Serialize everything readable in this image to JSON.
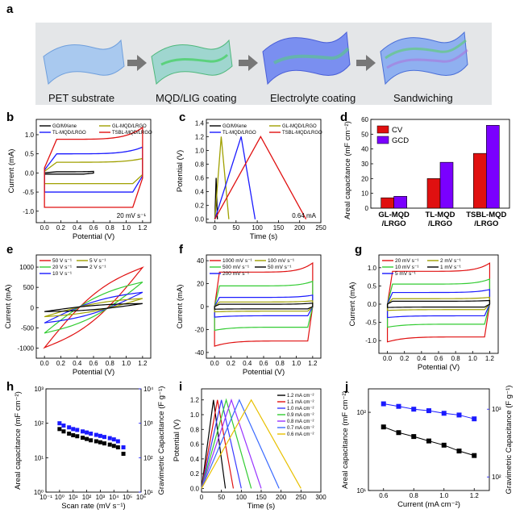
{
  "panel_a": {
    "label": "a",
    "steps": [
      "PET substrate",
      "MQD/LIG coating",
      "Electrolyte coating",
      "Sandwiching"
    ]
  },
  "colors": {
    "black": "#000000",
    "blue": "#1a1aff",
    "olive": "#a0a000",
    "red": "#e01010",
    "green": "#33cc33",
    "purple": "#9933ff",
    "violet": "#7a00ff",
    "yellow": "#e8c000",
    "gravi": "#1a1aff"
  },
  "chart_data": [
    {
      "id": "b",
      "type": "line",
      "label": "b",
      "xlabel": "Potential (V)",
      "ylabel": "Current (mA)",
      "xlim": [
        -0.1,
        1.3
      ],
      "ylim": [
        -1.3,
        1.4
      ],
      "xticks": [
        "0.0",
        "0.2",
        "0.4",
        "0.6",
        "0.8",
        "1.0",
        "1.2"
      ],
      "yticks": [
        "-1.0",
        "-0.5",
        "0.0",
        "0.5",
        "1.0"
      ],
      "annotation": "20 mV s⁻¹",
      "series": [
        {
          "name": "GO/MXene",
          "color": "black",
          "upper": 0.03,
          "lower": -0.03,
          "xmax": 0.6
        },
        {
          "name": "GL-MQD/LRGO",
          "color": "olive",
          "upper": 0.28,
          "lower": -0.28,
          "xmax": 1.2
        },
        {
          "name": "TL-MQD/LRGO",
          "color": "blue",
          "upper": 0.5,
          "lower": -0.5,
          "xmax": 1.2
        },
        {
          "name": "TSBL-MQD/LRGO",
          "color": "red",
          "upper": 0.88,
          "lower": -0.9,
          "xmax": 1.2
        }
      ]
    },
    {
      "id": "c",
      "type": "line",
      "label": "c",
      "xlabel": "Time (s)",
      "ylabel": "Potential (V)",
      "xlim": [
        -20,
        250
      ],
      "ylim": [
        -0.05,
        1.45
      ],
      "xticks": [
        "0",
        "50",
        "100",
        "150",
        "200",
        "250"
      ],
      "yticks": [
        "0.0",
        "0.2",
        "0.4",
        "0.6",
        "0.8",
        "1.0",
        "1.2",
        "1.4"
      ],
      "annotation": "0.64 mA",
      "series": [
        {
          "name": "GO/MXene",
          "color": "black",
          "t_peak": 3,
          "t_end": 6,
          "v_peak": 0.6
        },
        {
          "name": "GL-MQD/LRGO",
          "color": "olive",
          "t_peak": 15,
          "t_end": 33,
          "v_peak": 1.2
        },
        {
          "name": "TL-MQD/LRGO",
          "color": "blue",
          "t_peak": 62,
          "t_end": 95,
          "v_peak": 1.2
        },
        {
          "name": "TSBL-MQD/LRGO",
          "color": "red",
          "t_peak": 108,
          "t_end": 215,
          "v_peak": 1.2
        }
      ]
    },
    {
      "id": "d",
      "type": "bar",
      "label": "d",
      "ylabel": "Areal capacitance (mF cm⁻²)",
      "ylim": [
        0,
        60
      ],
      "yticks": [
        "0",
        "10",
        "20",
        "30",
        "40",
        "50",
        "60"
      ],
      "categories": [
        [
          "GL-MQD",
          "/LRGO"
        ],
        [
          "TL-MQD",
          "/LRGO"
        ],
        [
          "TSBL-MQD",
          "/LRGO"
        ]
      ],
      "series": [
        {
          "name": "CV",
          "color": "red",
          "values": [
            7,
            20,
            37
          ]
        },
        {
          "name": "GCD",
          "color": "violet",
          "values": [
            8,
            31,
            56
          ]
        }
      ]
    },
    {
      "id": "e",
      "type": "line",
      "label": "e",
      "xlabel": "Potential (V)",
      "ylabel": "Current (mA)",
      "xlim": [
        -0.1,
        1.3
      ],
      "ylim": [
        -1250,
        1300
      ],
      "xticks": [
        "0.0",
        "0.2",
        "0.4",
        "0.6",
        "0.8",
        "1.0",
        "1.2"
      ],
      "yticks": [
        "-1000",
        "-500",
        "0",
        "500",
        "1000"
      ],
      "series": [
        {
          "name": "50 V s⁻¹",
          "color": "red",
          "amp": 1100,
          "width": 320
        },
        {
          "name": "20 V s⁻¹",
          "color": "green",
          "amp": 700,
          "width": 220
        },
        {
          "name": "10 V s⁻¹",
          "color": "blue",
          "amp": 420,
          "width": 140
        },
        {
          "name": "5 V s⁻¹",
          "color": "olive",
          "amp": 250,
          "width": 90
        },
        {
          "name": "2 V s⁻¹",
          "color": "black",
          "amp": 110,
          "width": 50
        }
      ]
    },
    {
      "id": "f",
      "type": "line",
      "label": "f",
      "xlabel": "Potential (V)",
      "ylabel": "Current (mA)",
      "xlim": [
        -0.1,
        1.3
      ],
      "ylim": [
        -45,
        45
      ],
      "xticks": [
        "0.0",
        "0.2",
        "0.4",
        "0.6",
        "0.8",
        "1.0",
        "1.2"
      ],
      "yticks": [
        "-40",
        "-20",
        "0",
        "20",
        "40"
      ],
      "series": [
        {
          "name": "1000 mV s⁻¹",
          "color": "red",
          "upper": 30,
          "lower": -30,
          "hi_end": 38
        },
        {
          "name": "500 mV s⁻¹",
          "color": "green",
          "upper": 18,
          "lower": -18,
          "hi_end": 22
        },
        {
          "name": "200 mV s⁻¹",
          "color": "blue",
          "upper": 8,
          "lower": -8,
          "hi_end": 10
        },
        {
          "name": "100 mV s⁻¹",
          "color": "olive",
          "upper": 4,
          "lower": -4,
          "hi_end": 5
        },
        {
          "name": "50 mV s⁻¹",
          "color": "black",
          "upper": 2,
          "lower": -2,
          "hi_end": 3
        }
      ]
    },
    {
      "id": "g",
      "type": "line",
      "label": "g",
      "xlabel": "Potential (V)",
      "ylabel": "Current (mA)",
      "xlim": [
        -0.1,
        1.3
      ],
      "ylim": [
        -1.35,
        1.35
      ],
      "xticks": [
        "0.0",
        "0.2",
        "0.4",
        "0.6",
        "0.8",
        "1.0",
        "1.2"
      ],
      "yticks": [
        "-1.0",
        "-0.5",
        "0.0",
        "0.5",
        "1.0"
      ],
      "series": [
        {
          "name": "20 mV s⁻¹",
          "color": "red",
          "upper": 0.9,
          "lower": -0.9
        },
        {
          "name": "10 mV s⁻¹",
          "color": "green",
          "upper": 0.55,
          "lower": -0.55
        },
        {
          "name": "5 mV s⁻¹",
          "color": "blue",
          "upper": 0.32,
          "lower": -0.32
        },
        {
          "name": "2 mV s⁻¹",
          "color": "olive",
          "upper": 0.15,
          "lower": -0.15
        },
        {
          "name": "1 mV s⁻¹",
          "color": "black",
          "upper": 0.08,
          "lower": -0.08
        }
      ]
    },
    {
      "id": "h",
      "type": "scatter",
      "label": "h",
      "xlabel": "Scan rate (mV s⁻¹)",
      "ylabel": "Areal capacitance (mF cm⁻²)",
      "ylabel2": "Gravimetric Capacitance (F g⁻¹)",
      "xlim_log": [
        -1,
        6
      ],
      "ylim_log": [
        0,
        3
      ],
      "y2lim_log": [
        1,
        4
      ],
      "xticks": [
        "10⁻¹",
        "10⁰",
        "10¹",
        "10²",
        "10³",
        "10⁴",
        "10⁵",
        "10⁶"
      ],
      "yticks": [
        "10⁰",
        "10¹",
        "10²",
        "10³"
      ],
      "y2ticks": [
        "10¹",
        "10²",
        "10³",
        "10⁴"
      ],
      "x": [
        1,
        2,
        5,
        10,
        20,
        50,
        100,
        200,
        500,
        1000,
        2000,
        5000,
        10000,
        20000,
        50000
      ],
      "areal": [
        68,
        58,
        50,
        45,
        42,
        38,
        35,
        32,
        30,
        28,
        26,
        24,
        22,
        20,
        13
      ],
      "gravimetric": [
        1000,
        860,
        760,
        680,
        640,
        580,
        540,
        500,
        460,
        430,
        400,
        370,
        340,
        300,
        200
      ]
    },
    {
      "id": "i",
      "type": "line",
      "label": "i",
      "xlabel": "Time (s)",
      "ylabel": "Potential (V)",
      "xlim": [
        0,
        300
      ],
      "ylim": [
        -0.05,
        1.35
      ],
      "xticks": [
        "0",
        "50",
        "100",
        "150",
        "200",
        "250",
        "300"
      ],
      "yticks": [
        "0.0",
        "0.2",
        "0.4",
        "0.6",
        "0.8",
        "1.0",
        "1.2"
      ],
      "series": [
        {
          "name": "1.2 mA cm⁻²",
          "color": "black",
          "t_peak": 30,
          "t_end": 60
        },
        {
          "name": "1.1 mA cm⁻²",
          "color": "red",
          "t_peak": 40,
          "t_end": 80
        },
        {
          "name": "1.0 mA cm⁻²",
          "color": "#3a3aff",
          "t_peak": 50,
          "t_end": 100
        },
        {
          "name": "0.9 mA cm⁻²",
          "color": "green",
          "t_peak": 62,
          "t_end": 125
        },
        {
          "name": "0.8 mA cm⁻²",
          "color": "purple",
          "t_peak": 75,
          "t_end": 150
        },
        {
          "name": "0.7 mA cm⁻²",
          "color": "#3a6aff",
          "t_peak": 95,
          "t_end": 195
        },
        {
          "name": "0.6 mA cm⁻²",
          "color": "yellow",
          "t_peak": 125,
          "t_end": 250
        }
      ]
    },
    {
      "id": "j",
      "type": "scatter",
      "label": "j",
      "xlabel": "Current (mA cm⁻²)",
      "ylabel": "Areal capacitance (mF cm⁻²)",
      "ylabel2": "Gravimetric Capacitance (F g⁻¹)",
      "xlim": [
        0.5,
        1.3
      ],
      "xticks": [
        "0.6",
        "0.8",
        "1.0",
        "1.2"
      ],
      "ylim_log": [
        1,
        2.3
      ],
      "y2lim_log": [
        1.8,
        3.3
      ],
      "yticks": [
        "10¹",
        "10²"
      ],
      "y2ticks": [
        "10²",
        "10³"
      ],
      "x": [
        0.6,
        0.7,
        0.8,
        0.9,
        1.0,
        1.1,
        1.2
      ],
      "areal": [
        65,
        55,
        49,
        43,
        38,
        32,
        28
      ],
      "gravimetric": [
        1200,
        1100,
        1000,
        950,
        870,
        820,
        720
      ]
    }
  ]
}
